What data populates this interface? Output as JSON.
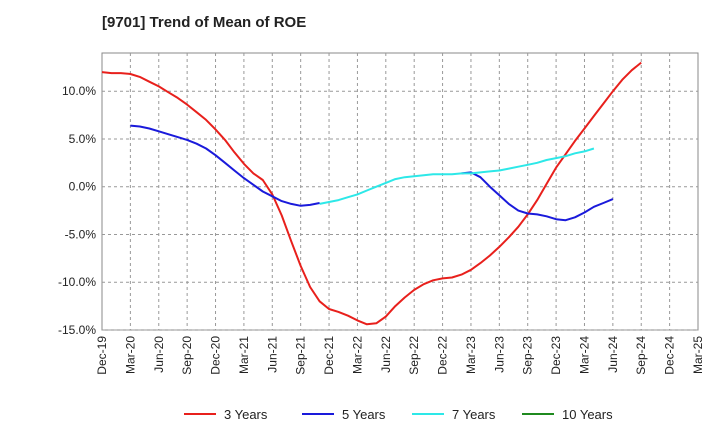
{
  "chart_data": {
    "type": "line",
    "title": "[9701]  Trend of Mean of ROE",
    "xlabel": "",
    "ylabel": "",
    "ylim": [
      -15,
      14
    ],
    "y_ticks": [
      10,
      5,
      0,
      -5,
      -10,
      -15
    ],
    "y_tick_labels": [
      "10.0%",
      "5.0%",
      "0.0%",
      "-5.0%",
      "-10.0%",
      "-15.0%"
    ],
    "x_tick_labels": [
      "Dec-19",
      "Mar-20",
      "Jun-20",
      "Sep-20",
      "Dec-20",
      "Mar-21",
      "Jun-21",
      "Sep-21",
      "Dec-21",
      "Mar-22",
      "Jun-22",
      "Sep-22",
      "Dec-22",
      "Mar-23",
      "Jun-23",
      "Sep-23",
      "Dec-23",
      "Mar-24",
      "Jun-24",
      "Sep-24",
      "Dec-24",
      "Mar-25"
    ],
    "grid": true,
    "legend_position": "bottom",
    "series": [
      {
        "name": "3 Years",
        "color": "#e8201c",
        "values": [
          12.0,
          11.9,
          11.9,
          11.8,
          11.5,
          11.0,
          10.5,
          9.9,
          9.3,
          8.6,
          7.8,
          7.0,
          6.0,
          4.9,
          3.6,
          2.4,
          1.4,
          0.7,
          -0.8,
          -3.0,
          -5.7,
          -8.3,
          -10.5,
          -12.0,
          -12.8,
          -13.1,
          -13.5,
          -14.0,
          -14.4,
          -14.3,
          -13.6,
          -12.5,
          -11.6,
          -10.8,
          -10.2,
          -9.8,
          -9.6,
          -9.5,
          -9.2,
          -8.7,
          -8.0,
          -7.2,
          -6.3,
          -5.3,
          -4.2,
          -2.9,
          -1.4,
          0.3,
          2.0,
          3.4,
          4.8,
          6.1,
          7.4,
          8.7,
          10.0,
          11.2,
          12.2,
          13.0
        ]
      },
      {
        "name": "5 Years",
        "color": "#1a1adb",
        "values": [
          null,
          null,
          null,
          6.4,
          6.3,
          6.1,
          5.8,
          5.5,
          5.2,
          4.9,
          4.5,
          4.0,
          3.3,
          2.5,
          1.7,
          0.9,
          0.2,
          -0.5,
          -1.0,
          -1.5,
          -1.8,
          -2.0,
          -1.9,
          -1.7,
          null,
          null,
          null,
          null,
          null,
          null,
          null,
          null,
          null,
          null,
          null,
          null,
          null,
          null,
          1.4,
          1.5,
          1.0,
          0.0,
          -0.9,
          -1.8,
          -2.5,
          -2.8,
          -2.9,
          -3.1,
          -3.4,
          -3.5,
          -3.2,
          -2.7,
          -2.1,
          -1.7,
          -1.3
        ]
      },
      {
        "name": "7 Years",
        "color": "#2de8e8",
        "values": [
          null,
          null,
          null,
          null,
          null,
          null,
          null,
          null,
          null,
          null,
          null,
          null,
          null,
          null,
          null,
          null,
          null,
          null,
          null,
          null,
          null,
          null,
          null,
          -1.8,
          -1.6,
          -1.4,
          -1.1,
          -0.8,
          -0.4,
          0.0,
          0.4,
          0.8,
          1.0,
          1.1,
          1.2,
          1.3,
          1.3,
          1.3,
          1.4,
          1.4,
          1.5,
          1.6,
          1.7,
          1.9,
          2.1,
          2.3,
          2.5,
          2.8,
          3.0,
          3.2,
          3.5,
          3.7,
          4.0
        ]
      },
      {
        "name": "10 Years",
        "color": "#1f8a1f",
        "values": []
      }
    ]
  }
}
